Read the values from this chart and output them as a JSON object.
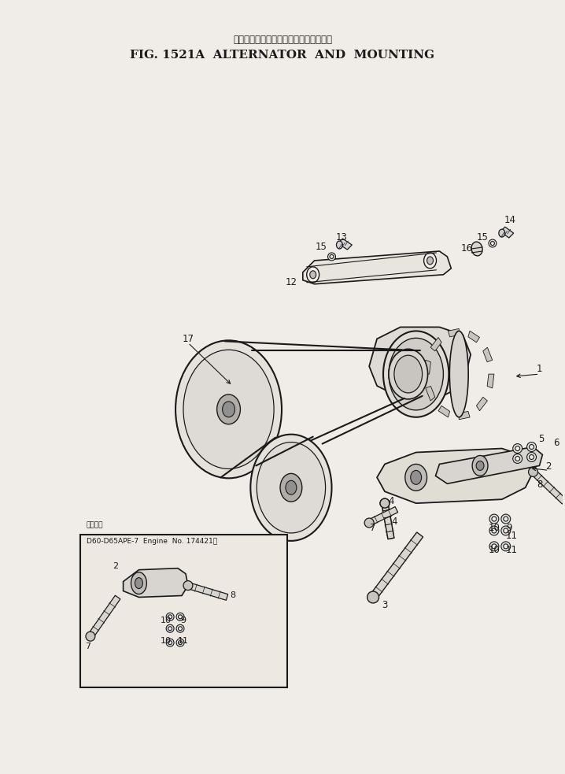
{
  "title_japanese": "オルタネータ　および　マウンティング",
  "title_english": "FIG. 1521A  ALTERNATOR  AND  MOUNTING",
  "background_color": "#f5f5f0",
  "fig_width": 7.18,
  "fig_height": 9.83,
  "dpi": 100,
  "text_color": "#000000",
  "inset_label_1": "適用将番",
  "inset_label_2": "D60-D65APE-7  Engine  No. 174421〜"
}
